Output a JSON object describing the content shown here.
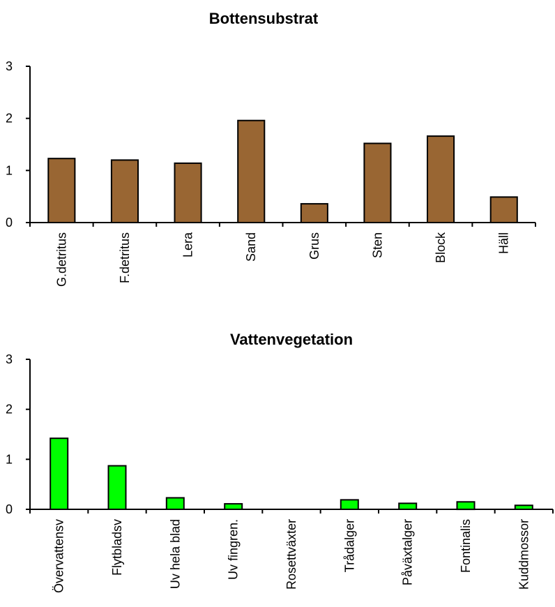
{
  "chart_data": [
    {
      "type": "bar",
      "title": "Bottensubstrat",
      "xlabel": "",
      "ylabel": "",
      "categories": [
        "G.detritus",
        "F.detritus",
        "Lera",
        "Sand",
        "Grus",
        "Sten",
        "Block",
        "Häll"
      ],
      "values": [
        1.23,
        1.2,
        1.14,
        1.96,
        0.36,
        1.52,
        1.66,
        0.49
      ],
      "ylim": [
        0,
        3
      ],
      "yticks": [
        "0",
        "1",
        "2",
        "3"
      ],
      "grid": false,
      "bar_color": "#996633"
    },
    {
      "type": "bar",
      "title": "Vattenvegetation",
      "xlabel": "",
      "ylabel": "",
      "categories": [
        "Övervattensv",
        "Flytbladsv",
        "Uv hela blad",
        "Uv fingren.",
        "Rosettväxter",
        "Trådalger",
        "Påväxtalger",
        "Fontinalis",
        "Kuddmossor"
      ],
      "values": [
        1.42,
        0.87,
        0.23,
        0.11,
        0,
        0.19,
        0.12,
        0.15,
        0.08
      ],
      "ylim": [
        0,
        3
      ],
      "yticks": [
        "0",
        "1",
        "2",
        "3"
      ],
      "grid": false,
      "bar_color": "#00ff00"
    }
  ]
}
